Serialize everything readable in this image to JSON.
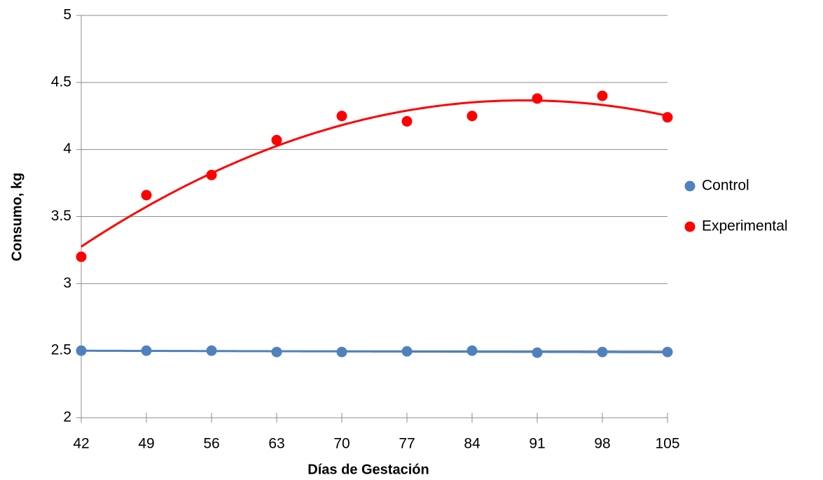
{
  "chart_data": {
    "type": "scatter",
    "x_label": "Días de Gestación",
    "y_label": "Consumo, kg",
    "x": [
      42,
      49,
      56,
      63,
      70,
      77,
      84,
      91,
      98,
      105
    ],
    "series": [
      {
        "name": "Control",
        "color": "#4f81bd",
        "values": [
          2.5,
          2.5,
          2.5,
          2.49,
          2.49,
          2.495,
          2.5,
          2.485,
          2.49,
          2.49
        ],
        "trendline": {
          "type": "polynomial",
          "order": 1
        }
      },
      {
        "name": "Experimental",
        "color": "#ff0000",
        "values": [
          3.2,
          3.66,
          3.81,
          4.07,
          4.25,
          4.21,
          4.25,
          4.38,
          4.4,
          4.24
        ],
        "trendline": {
          "type": "polynomial",
          "order": 2
        }
      }
    ],
    "xlim": [
      42,
      105
    ],
    "xticks": [
      42,
      49,
      56,
      63,
      70,
      77,
      84,
      91,
      98,
      105
    ],
    "ylim": [
      2,
      5
    ],
    "yticks": [
      2,
      2.5,
      3,
      3.5,
      4,
      4.5,
      5
    ],
    "grid": true,
    "legend": "right"
  }
}
